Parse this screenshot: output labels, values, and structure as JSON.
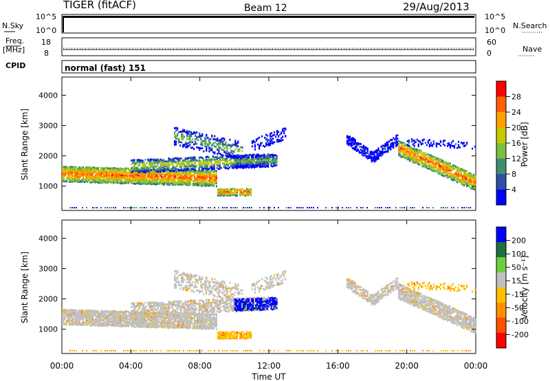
{
  "header": {
    "site": "TIGER (fitACF)",
    "beam": "Beam 12",
    "date": "29/Aug/2013"
  },
  "top_panel": {
    "nsky_label": "N.Sky",
    "nsky_ticks": [
      "10^5",
      "10^0"
    ],
    "nsearch_label": "N.Search",
    "nsearch_ticks": [
      "10^5",
      "10^0"
    ],
    "freq_label": "Freq.",
    "freq_unit": "[MHz]",
    "freq_ticks": [
      "18",
      "8"
    ],
    "nave_label": "Nave",
    "nave_ticks": [
      "60",
      "0"
    ],
    "cpid_label": "CPID",
    "cpid_value": "normal (fast) 151"
  },
  "colors": {
    "power": [
      "#0000ff",
      "#2f4fa8",
      "#3f8f6f",
      "#7fbf3f",
      "#c8c800",
      "#ff9f00",
      "#ff5f00",
      "#ff0000"
    ],
    "velocity": [
      "#0000ff",
      "#1f6f3f",
      "#6fcf3f",
      "#c0c0c0",
      "#ffbf00",
      "#ff8f00",
      "#ff4f00",
      "#ff0000"
    ]
  },
  "chart_data": [
    {
      "type": "heatmap",
      "ylabel": "Slant Range [km]",
      "ylim": [
        200,
        4600
      ],
      "yticks": [
        "4000",
        "3000",
        "2000",
        "1000"
      ],
      "colorbar_label": "Power [dB]",
      "colorbar_ticks": [
        "28",
        "24",
        "20",
        "16",
        "12",
        "8",
        "4"
      ],
      "colorbar_range": [
        0,
        32
      ]
    },
    {
      "type": "heatmap",
      "ylabel": "Slant Range [km]",
      "ylim": [
        200,
        4600
      ],
      "yticks": [
        "4000",
        "3000",
        "2000",
        "1000"
      ],
      "colorbar_label": "Velocity [m s⁻¹]",
      "colorbar_ticks": [
        "200",
        "100",
        "50",
        "15",
        "-15",
        "-50",
        "-100",
        "-200"
      ]
    }
  ],
  "xaxis": {
    "label": "Time UT",
    "ticks": [
      "00:00",
      "04:00",
      "08:00",
      "12:00",
      "16:00",
      "20:00",
      "00:00"
    ]
  }
}
